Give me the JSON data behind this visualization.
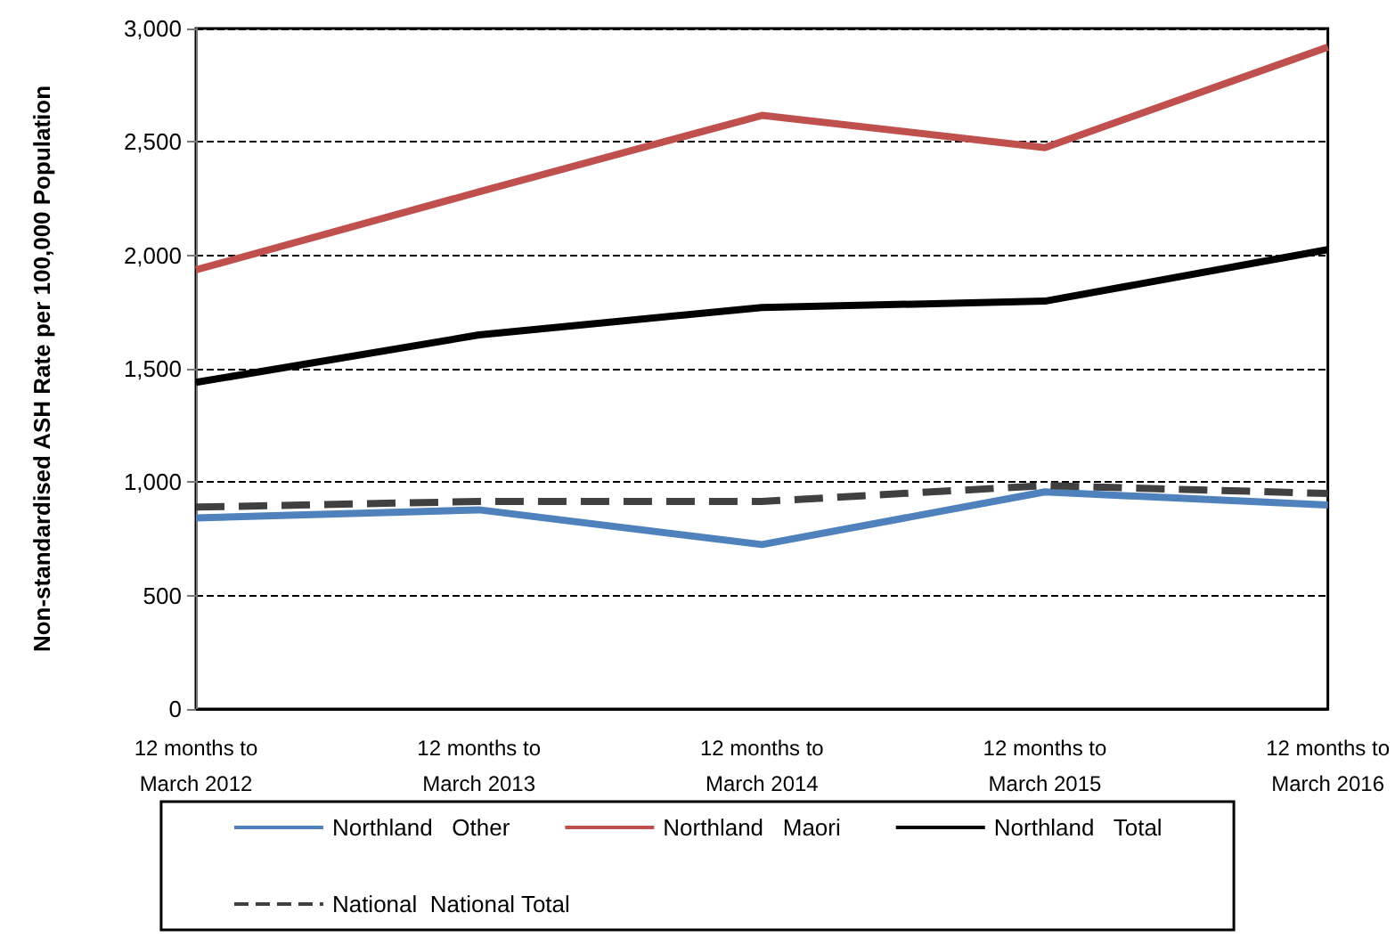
{
  "chart_data": {
    "type": "line",
    "ylabel": "Non-standardised ASH Rate per 100,000 Population",
    "categories": [
      "12 months to\nMarch 2012",
      "12 months to\nMarch 2013",
      "12 months to\nMarch 2014",
      "12 months to\nMarch 2015",
      "12 months to\nMarch 2016"
    ],
    "series": [
      {
        "name": "Northland   Other",
        "color": "#4f81bd",
        "values": [
          842,
          878,
          725,
          957,
          899
        ]
      },
      {
        "name": "Northland   Maori",
        "color": "#c0504d",
        "values": [
          1936,
          2280,
          2617,
          2475,
          2918
        ]
      },
      {
        "name": "Northland   Total",
        "color": "#000000",
        "values": [
          1440,
          1649,
          1770,
          1798,
          2025
        ]
      },
      {
        "name": "National  National Total",
        "color": "#404040",
        "values": [
          890,
          915,
          915,
          985,
          950
        ],
        "line_style": "dashed"
      }
    ],
    "ylim": [
      0,
      3000
    ],
    "yticks": [
      0,
      500,
      {
        "value": 1000,
        "label": "1,000"
      },
      {
        "value": 1500,
        "label": "1,500"
      },
      {
        "value": 2000,
        "label": "2,000"
      },
      {
        "value": 2500,
        "label": "2,500"
      },
      {
        "value": 3000,
        "label": "3,000"
      }
    ],
    "grid": "y",
    "legend": "bottom",
    "marker": "none"
  }
}
